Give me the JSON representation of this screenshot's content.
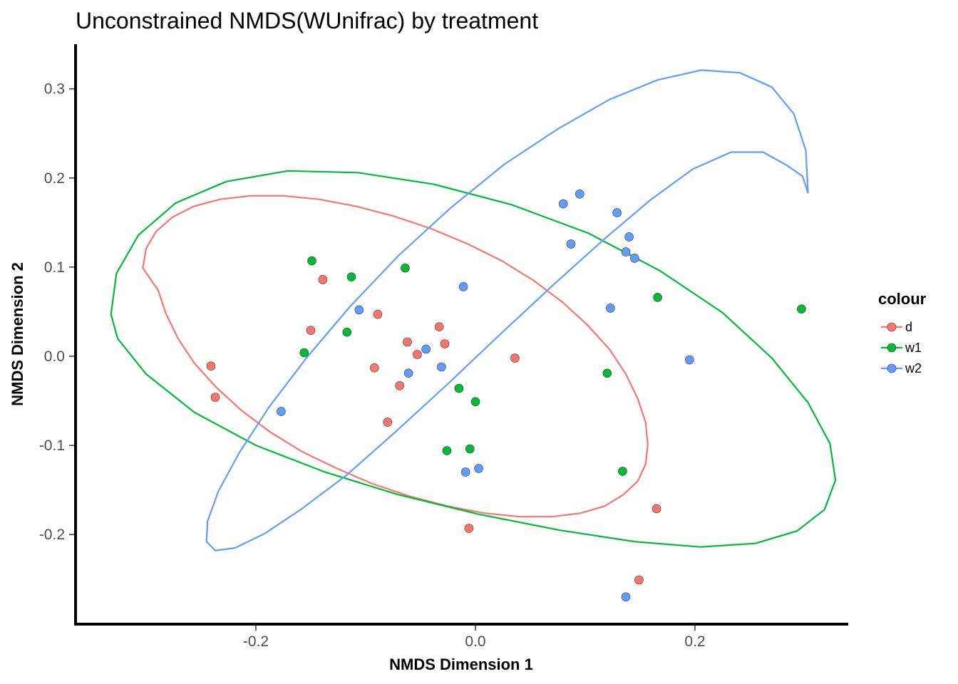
{
  "chart_data": {
    "type": "scatter",
    "title": "Unconstrained NMDS(WUnifrac) by treatment",
    "xlabel": "NMDS Dimension 1",
    "ylabel": "NMDS Dimension 2",
    "xlim": [
      -0.365,
      0.335
    ],
    "ylim": [
      -0.3,
      0.35
    ],
    "xticks": [
      -0.2,
      0.0,
      0.2
    ],
    "xtick_labels": [
      "-0.2",
      "0.0",
      "0.2"
    ],
    "yticks": [
      -0.2,
      -0.1,
      0.0,
      0.1,
      0.2,
      0.3
    ],
    "ytick_labels": [
      "-0.2",
      "-0.1",
      "0.0",
      "0.1",
      "0.2",
      "0.3"
    ],
    "grid": false,
    "legend": {
      "title": "colour",
      "position": "right"
    },
    "series": [
      {
        "name": "d",
        "color": "#F8766D",
        "points": [
          [
            -0.241,
            -0.011
          ],
          [
            -0.237,
            -0.046
          ],
          [
            -0.139,
            0.086
          ],
          [
            -0.15,
            0.029
          ],
          [
            -0.089,
            0.047
          ],
          [
            -0.092,
            -0.013
          ],
          [
            -0.08,
            -0.074
          ],
          [
            -0.069,
            -0.033
          ],
          [
            -0.062,
            0.016
          ],
          [
            -0.053,
            0.002
          ],
          [
            -0.033,
            0.033
          ],
          [
            -0.028,
            0.014
          ],
          [
            -0.006,
            -0.193
          ],
          [
            0.036,
            -0.002
          ],
          [
            0.149,
            -0.251
          ],
          [
            0.165,
            -0.171
          ]
        ],
        "ellipse": [
          [
            -0.303,
            0.099
          ],
          [
            -0.3,
            0.121
          ],
          [
            -0.291,
            0.14
          ],
          [
            -0.276,
            0.156
          ],
          [
            -0.257,
            0.168
          ],
          [
            -0.233,
            0.176
          ],
          [
            -0.205,
            0.18
          ],
          [
            -0.175,
            0.18
          ],
          [
            -0.142,
            0.176
          ],
          [
            -0.108,
            0.168
          ],
          [
            -0.074,
            0.157
          ],
          [
            -0.04,
            0.143
          ],
          [
            -0.007,
            0.126
          ],
          [
            0.024,
            0.107
          ],
          [
            0.053,
            0.085
          ],
          [
            0.079,
            0.061
          ],
          [
            0.102,
            0.035
          ],
          [
            0.122,
            0.008
          ],
          [
            0.137,
            -0.02
          ],
          [
            0.148,
            -0.048
          ],
          [
            0.155,
            -0.074
          ],
          [
            0.157,
            -0.099
          ],
          [
            0.155,
            -0.121
          ],
          [
            0.148,
            -0.14
          ],
          [
            0.135,
            -0.155
          ],
          [
            0.118,
            -0.168
          ],
          [
            0.096,
            -0.176
          ],
          [
            0.07,
            -0.18
          ],
          [
            0.04,
            -0.18
          ],
          [
            0.008,
            -0.176
          ],
          [
            -0.026,
            -0.168
          ],
          [
            -0.06,
            -0.157
          ],
          [
            -0.094,
            -0.143
          ],
          [
            -0.126,
            -0.126
          ],
          [
            -0.158,
            -0.107
          ],
          [
            -0.187,
            -0.085
          ],
          [
            -0.213,
            -0.061
          ],
          [
            -0.236,
            -0.035
          ],
          [
            -0.256,
            -0.008
          ],
          [
            -0.271,
            0.02
          ],
          [
            -0.282,
            0.048
          ],
          [
            -0.289,
            0.074
          ]
        ]
      },
      {
        "name": "w1",
        "color": "#00BA38",
        "points": [
          [
            -0.149,
            0.107
          ],
          [
            -0.156,
            0.004
          ],
          [
            -0.113,
            0.089
          ],
          [
            -0.117,
            0.027
          ],
          [
            -0.064,
            0.099
          ],
          [
            -0.015,
            -0.036
          ],
          [
            -0.026,
            -0.106
          ],
          [
            -0.005,
            -0.104
          ],
          [
            0.0,
            -0.051
          ],
          [
            0.12,
            -0.019
          ],
          [
            0.134,
            -0.129
          ],
          [
            0.166,
            0.066
          ],
          [
            0.297,
            0.053
          ]
        ],
        "ellipse": [
          [
            -0.332,
            0.047
          ],
          [
            -0.327,
            0.093
          ],
          [
            -0.307,
            0.136
          ],
          [
            -0.273,
            0.172
          ],
          [
            -0.227,
            0.196
          ],
          [
            -0.171,
            0.208
          ],
          [
            -0.107,
            0.206
          ],
          [
            -0.038,
            0.193
          ],
          [
            0.033,
            0.17
          ],
          [
            0.103,
            0.138
          ],
          [
            0.168,
            0.096
          ],
          [
            0.225,
            0.049
          ],
          [
            0.27,
            -0.002
          ],
          [
            0.303,
            -0.052
          ],
          [
            0.323,
            -0.098
          ],
          [
            0.328,
            -0.139
          ],
          [
            0.318,
            -0.172
          ],
          [
            0.293,
            -0.196
          ],
          [
            0.255,
            -0.21
          ],
          [
            0.205,
            -0.214
          ],
          [
            0.145,
            -0.208
          ],
          [
            0.076,
            -0.195
          ],
          [
            0.002,
            -0.177
          ],
          [
            -0.071,
            -0.155
          ],
          [
            -0.137,
            -0.13
          ],
          [
            -0.2,
            -0.1
          ],
          [
            -0.256,
            -0.063
          ],
          [
            -0.3,
            -0.02
          ],
          [
            -0.326,
            0.02
          ]
        ]
      },
      {
        "name": "w2",
        "color": "#619CFF",
        "points": [
          [
            -0.177,
            -0.062
          ],
          [
            -0.106,
            0.052
          ],
          [
            -0.061,
            -0.019
          ],
          [
            -0.045,
            0.008
          ],
          [
            -0.031,
            -0.012
          ],
          [
            -0.011,
            0.078
          ],
          [
            -0.009,
            -0.13
          ],
          [
            0.003,
            -0.126
          ],
          [
            0.08,
            0.171
          ],
          [
            0.087,
            0.126
          ],
          [
            0.095,
            0.182
          ],
          [
            0.123,
            0.054
          ],
          [
            0.129,
            0.161
          ],
          [
            0.137,
            0.117
          ],
          [
            0.14,
            0.134
          ],
          [
            0.145,
            0.11
          ],
          [
            0.195,
            -0.004
          ],
          [
            0.137,
            -0.27
          ]
        ],
        "ellipse": [
          [
            0.303,
            0.183
          ],
          [
            0.301,
            0.231
          ],
          [
            0.29,
            0.272
          ],
          [
            0.27,
            0.302
          ],
          [
            0.241,
            0.318
          ],
          [
            0.206,
            0.321
          ],
          [
            0.166,
            0.31
          ],
          [
            0.122,
            0.288
          ],
          [
            0.075,
            0.255
          ],
          [
            0.026,
            0.215
          ],
          [
            -0.023,
            0.166
          ],
          [
            -0.07,
            0.113
          ],
          [
            -0.114,
            0.056
          ],
          [
            -0.154,
            -0.002
          ],
          [
            -0.188,
            -0.057
          ],
          [
            -0.215,
            -0.108
          ],
          [
            -0.234,
            -0.151
          ],
          [
            -0.244,
            -0.185
          ],
          [
            -0.245,
            -0.208
          ],
          [
            -0.237,
            -0.218
          ],
          [
            -0.219,
            -0.215
          ],
          [
            -0.192,
            -0.199
          ],
          [
            -0.158,
            -0.171
          ],
          [
            -0.117,
            -0.133
          ],
          [
            -0.073,
            -0.085
          ],
          [
            -0.026,
            -0.032
          ],
          [
            0.022,
            0.024
          ],
          [
            0.07,
            0.079
          ],
          [
            0.116,
            0.13
          ],
          [
            0.159,
            0.175
          ],
          [
            0.198,
            0.21
          ],
          [
            0.233,
            0.229
          ],
          [
            0.262,
            0.229
          ],
          [
            0.284,
            0.214
          ],
          [
            0.298,
            0.202
          ]
        ]
      }
    ]
  }
}
